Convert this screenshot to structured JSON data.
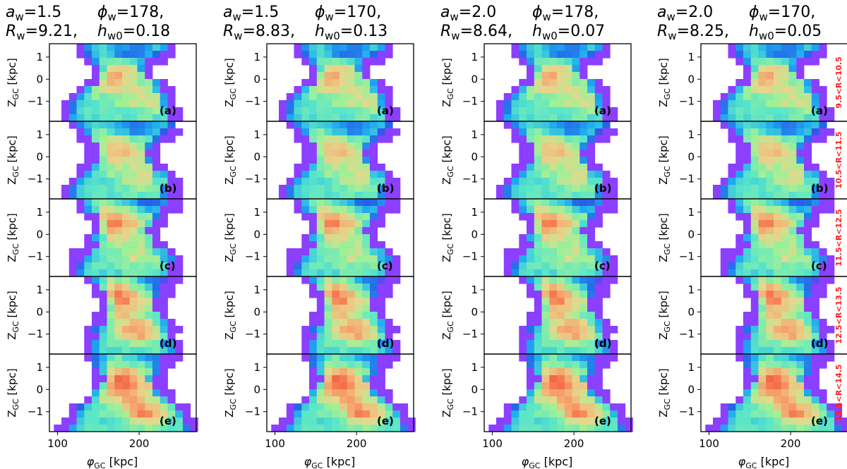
{
  "chart_data": {
    "type": "heatmap",
    "description_axes": {
      "xlabel_main": "φ",
      "xlabel_sub": "GC",
      "xlabel_unit": "[kpc]",
      "ylabel_main": "Z",
      "ylabel_sub": "GC",
      "ylabel_unit": "[kpc]"
    },
    "xlim": [
      90,
      270
    ],
    "ylim": [
      -1.9,
      1.6
    ],
    "x_ticks": [
      100,
      200
    ],
    "y_ticks": [
      1,
      0,
      -1
    ],
    "columns": [
      {
        "a": "1.5",
        "phi": "178",
        "R": "9.21",
        "h": "0.18"
      },
      {
        "a": "1.5",
        "phi": "170",
        "R": "8.83",
        "h": "0.13"
      },
      {
        "a": "2.0",
        "phi": "178",
        "R": "8.64",
        "h": "0.07"
      },
      {
        "a": "2.0",
        "phi": "170",
        "R": "8.25",
        "h": "0.05"
      }
    ],
    "title_symbols": {
      "a": "a",
      "phi": "ϕ",
      "R": "R",
      "h": "h",
      "sub_w": "w",
      "sub_w0": "w0"
    },
    "rows": [
      {
        "panel": "(a)",
        "range": "9.5<R<10.5"
      },
      {
        "panel": "(b)",
        "range": "10.5<R<11.5"
      },
      {
        "panel": "(c)",
        "range": "11.5<R<12.5"
      },
      {
        "panel": "(d)",
        "range": "12.5<R<13.5"
      },
      {
        "panel": "(e)",
        "range": "13.5<R<14.5"
      }
    ],
    "colormap": "rainbow",
    "note": "Density maps in (phi_GC, Z_GC); all four columns show near-identical maps for each radial bin."
  }
}
